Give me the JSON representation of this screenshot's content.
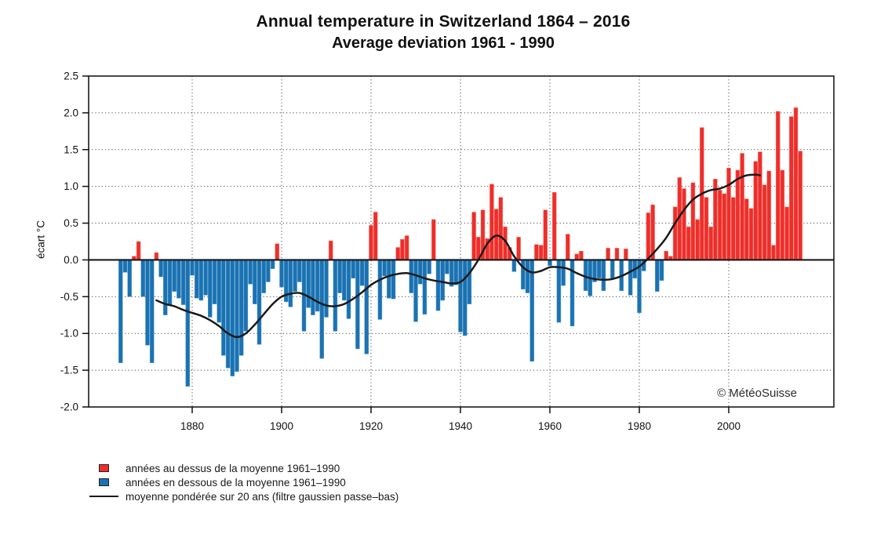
{
  "title": {
    "line1": "Annual temperature in Switzerland 1864 – 2016",
    "line2": "Average deviation 1961 - 1990"
  },
  "watermark": "© MétéoSuisse",
  "y_axis": {
    "label": "écart °C",
    "ticks": [
      2.5,
      2.0,
      1.5,
      1.0,
      0.5,
      0.0,
      -0.5,
      -1.0,
      -1.5,
      -2.0
    ]
  },
  "x_axis": {
    "ticks": [
      1880,
      1900,
      1920,
      1940,
      1960,
      1980,
      2000
    ]
  },
  "legend": [
    {
      "type": "square",
      "color": "#ee2e2c",
      "label": "années au dessus de la moyenne 1961–1990"
    },
    {
      "type": "square",
      "color": "#1a72b2",
      "label": "années en dessous de la moyenne 1961–1990"
    },
    {
      "type": "line",
      "color": "#1a1a1a",
      "label": "moyenne pondérée sur 20 ans (filtre gaussien passe–bas)"
    }
  ],
  "chart_data": {
    "type": "bar",
    "title": "Annual temperature in Switzerland 1864 – 2016",
    "subtitle": "Average deviation 1961 - 1990",
    "xlabel": "",
    "ylabel": "écart °C",
    "ylim": [
      -2.0,
      2.5
    ],
    "x_tick_years": [
      1880,
      1900,
      1920,
      1940,
      1960,
      1980,
      2000
    ],
    "grid": "dotted",
    "legend_position": "bottom-left",
    "colors": {
      "above": "#ee2e2c",
      "above_edge": "#f47d6e",
      "below": "#1a72b2",
      "below_edge": "#5b9ec9",
      "line": "#1a1a1a"
    },
    "start_year": 1864,
    "end_year": 2016,
    "values": [
      -1.4,
      -0.17,
      -0.5,
      0.05,
      0.25,
      -0.5,
      -1.16,
      -1.4,
      0.1,
      -0.23,
      -0.75,
      -0.61,
      -0.43,
      -0.52,
      -0.61,
      -1.72,
      -0.21,
      -0.52,
      -0.55,
      -0.48,
      -0.78,
      -0.6,
      -0.85,
      -1.3,
      -1.47,
      -1.58,
      -1.52,
      -1.3,
      -0.97,
      -0.33,
      -0.6,
      -1.15,
      -0.45,
      -0.3,
      -0.12,
      0.22,
      -0.37,
      -0.57,
      -0.64,
      -0.43,
      -0.3,
      -0.97,
      -0.65,
      -0.75,
      -0.7,
      -1.34,
      -0.78,
      0.26,
      -0.97,
      -0.45,
      -0.55,
      -0.8,
      -0.25,
      -1.21,
      -0.35,
      -1.28,
      0.47,
      0.65,
      -0.81,
      -0.22,
      -0.52,
      -0.53,
      0.17,
      0.28,
      0.33,
      -0.45,
      -0.84,
      -0.33,
      -0.74,
      -0.19,
      0.55,
      -0.69,
      -0.55,
      -0.19,
      -0.36,
      -0.34,
      -0.98,
      -1.03,
      -0.6,
      0.65,
      0.31,
      0.68,
      0.29,
      1.03,
      0.69,
      0.85,
      0.45,
      0.17,
      -0.16,
      0.31,
      -0.4,
      -0.45,
      -1.38,
      0.21,
      0.2,
      0.68,
      -0.08,
      0.92,
      -0.85,
      -0.35,
      0.35,
      -0.9,
      0.08,
      0.12,
      -0.42,
      -0.49,
      -0.3,
      -0.25,
      -0.42,
      0.16,
      -0.25,
      0.16,
      -0.42,
      0.15,
      -0.48,
      -0.25,
      -0.72,
      -0.15,
      0.64,
      0.75,
      -0.43,
      -0.28,
      0.12,
      0.05,
      0.72,
      1.12,
      0.97,
      0.45,
      1.05,
      0.55,
      1.8,
      0.85,
      0.45,
      1.1,
      0.95,
      0.9,
      1.25,
      0.85,
      1.22,
      1.45,
      0.83,
      0.7,
      1.34,
      1.47,
      1.02,
      1.21,
      0.2,
      2.02,
      1.22,
      0.72,
      1.95,
      2.07,
      1.48
    ],
    "smoothed_line": {
      "label": "moyenne pondérée sur 20 ans (filtre gaussien passe–bas)",
      "years": [
        1872,
        1874,
        1876,
        1878,
        1880,
        1882,
        1884,
        1886,
        1888,
        1890,
        1892,
        1894,
        1896,
        1898,
        1900,
        1902,
        1904,
        1906,
        1908,
        1910,
        1912,
        1914,
        1916,
        1918,
        1920,
        1922,
        1924,
        1926,
        1928,
        1930,
        1932,
        1934,
        1936,
        1938,
        1940,
        1942,
        1944,
        1946,
        1948,
        1950,
        1952,
        1954,
        1956,
        1958,
        1960,
        1962,
        1964,
        1966,
        1968,
        1970,
        1972,
        1974,
        1976,
        1978,
        1980,
        1982,
        1984,
        1986,
        1988,
        1990,
        1992,
        1994,
        1996,
        1998,
        2000,
        2002,
        2004,
        2006,
        2007
      ],
      "values": [
        -0.55,
        -0.6,
        -0.63,
        -0.68,
        -0.72,
        -0.76,
        -0.82,
        -0.9,
        -1.0,
        -1.05,
        -1.0,
        -0.88,
        -0.74,
        -0.6,
        -0.5,
        -0.46,
        -0.45,
        -0.5,
        -0.57,
        -0.62,
        -0.63,
        -0.6,
        -0.53,
        -0.44,
        -0.34,
        -0.27,
        -0.22,
        -0.19,
        -0.18,
        -0.21,
        -0.25,
        -0.28,
        -0.3,
        -0.32,
        -0.3,
        -0.18,
        0.0,
        0.22,
        0.33,
        0.26,
        0.05,
        -0.1,
        -0.17,
        -0.15,
        -0.1,
        -0.1,
        -0.12,
        -0.18,
        -0.23,
        -0.26,
        -0.27,
        -0.26,
        -0.22,
        -0.16,
        -0.09,
        0.02,
        0.15,
        0.3,
        0.5,
        0.68,
        0.82,
        0.9,
        0.95,
        0.97,
        1.02,
        1.1,
        1.15,
        1.16,
        1.15
      ]
    }
  }
}
